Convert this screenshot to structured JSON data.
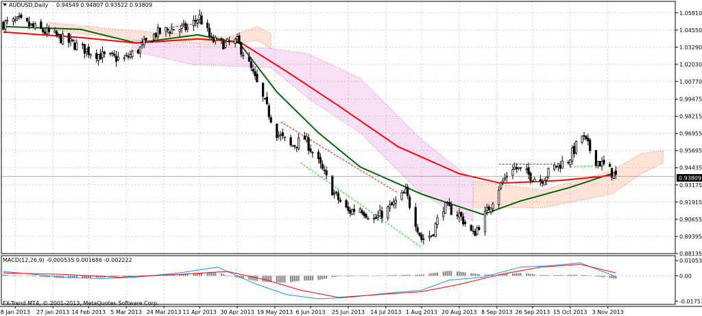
{
  "header": {
    "symbol_label": "AUDUSD,Daily",
    "ohlc_label": "0.94549 0.94807 0.93522 0.93809"
  },
  "price_tag": "0.93809",
  "macd": {
    "label": "MACD(12,26,9) -0.000535 0.001686 -0.002222",
    "watermark": "FX-Trend MT4, © 2001-2013, MetaQuotes Software Corp."
  },
  "colors": {
    "background": "#ffffff",
    "grid": "#c0c0c0",
    "candle": "#000000",
    "ma_fast": "#006400",
    "ma_slow": "#ff0000",
    "cloud_up": "#ff7f50",
    "cloud_down": "#da70d6",
    "macd_line": "#1e90ff",
    "signal_line": "#ff0000",
    "hist": "#808080",
    "arrow_up": "#00dd00",
    "arrow_down": "#ff0000"
  },
  "chart_data": [
    {
      "type": "candlestick",
      "title": "AUDUSD,Daily",
      "last_price": 0.93809,
      "y_ticks": [
        "1.05810",
        "1.04550",
        "1.03290",
        "1.02030",
        "1.00770",
        "0.99475",
        "0.98215",
        "0.96955",
        "0.95695",
        "0.94435",
        "0.93175",
        "0.91915",
        "0.90655",
        "0.89395",
        "0.88135"
      ],
      "ylim": [
        0.8813,
        1.0605
      ],
      "x_labels": [
        "8 Jan 2013",
        "27 Jan 2013",
        "14 Feb 2013",
        "5 Mar 2013",
        "24 Mar 2013",
        "11 Apr 2013",
        "30 Apr 2013",
        "19 May 2013",
        "6 Jun 2013",
        "25 Jun 2013",
        "14 Jul 2013",
        "1 Aug 2013",
        "20 Aug 2013",
        "8 Sep 2013",
        "26 Sep 2013",
        "15 Oct 2013",
        "3 Nov 2013"
      ],
      "close_anchors": [
        {
          "date": "2013-01-02",
          "close": 1.05
        },
        {
          "date": "2013-01-10",
          "close": 1.052
        },
        {
          "date": "2013-01-18",
          "close": 1.047
        },
        {
          "date": "2013-01-27",
          "close": 1.042
        },
        {
          "date": "2013-02-05",
          "close": 1.036
        },
        {
          "date": "2013-02-14",
          "close": 1.03
        },
        {
          "date": "2013-02-22",
          "close": 1.026
        },
        {
          "date": "2013-03-04",
          "close": 1.024
        },
        {
          "date": "2013-03-12",
          "close": 1.032
        },
        {
          "date": "2013-03-20",
          "close": 1.043
        },
        {
          "date": "2013-03-28",
          "close": 1.046
        },
        {
          "date": "2013-04-05",
          "close": 1.047
        },
        {
          "date": "2013-04-11",
          "close": 1.055
        },
        {
          "date": "2013-04-17",
          "close": 1.038
        },
        {
          "date": "2013-04-24",
          "close": 1.035
        },
        {
          "date": "2013-04-30",
          "close": 1.037
        },
        {
          "date": "2013-05-06",
          "close": 1.02
        },
        {
          "date": "2013-05-13",
          "close": 0.995
        },
        {
          "date": "2013-05-20",
          "close": 0.97
        },
        {
          "date": "2013-05-27",
          "close": 0.96
        },
        {
          "date": "2013-06-03",
          "close": 0.966
        },
        {
          "date": "2013-06-10",
          "close": 0.948
        },
        {
          "date": "2013-06-18",
          "close": 0.925
        },
        {
          "date": "2013-06-25",
          "close": 0.912
        },
        {
          "date": "2013-07-01",
          "close": 0.915
        },
        {
          "date": "2013-07-08",
          "close": 0.906
        },
        {
          "date": "2013-07-16",
          "close": 0.915
        },
        {
          "date": "2013-07-24",
          "close": 0.926
        },
        {
          "date": "2013-08-01",
          "close": 0.892
        },
        {
          "date": "2013-08-06",
          "close": 0.895
        },
        {
          "date": "2013-08-12",
          "close": 0.916
        },
        {
          "date": "2013-08-20",
          "close": 0.91
        },
        {
          "date": "2013-08-27",
          "close": 0.895
        },
        {
          "date": "2013-09-03",
          "close": 0.912
        },
        {
          "date": "2013-09-09",
          "close": 0.93
        },
        {
          "date": "2013-09-16",
          "close": 0.945
        },
        {
          "date": "2013-09-23",
          "close": 0.94
        },
        {
          "date": "2013-09-30",
          "close": 0.935
        },
        {
          "date": "2013-10-07",
          "close": 0.945
        },
        {
          "date": "2013-10-14",
          "close": 0.95
        },
        {
          "date": "2013-10-21",
          "close": 0.968
        },
        {
          "date": "2013-10-28",
          "close": 0.95
        },
        {
          "date": "2013-11-01",
          "close": 0.946
        },
        {
          "date": "2013-11-07",
          "close": 0.938
        }
      ],
      "series": [
        {
          "name": "MA fast",
          "points": [
            {
              "date": "2013-01-02",
              "value": 1.048
            },
            {
              "date": "2013-02-10",
              "value": 1.046
            },
            {
              "date": "2013-03-10",
              "value": 1.036
            },
            {
              "date": "2013-04-10",
              "value": 1.042
            },
            {
              "date": "2013-05-01",
              "value": 1.036
            },
            {
              "date": "2013-05-20",
              "value": 1.0
            },
            {
              "date": "2013-06-10",
              "value": 0.97
            },
            {
              "date": "2013-07-01",
              "value": 0.945
            },
            {
              "date": "2013-08-01",
              "value": 0.925
            },
            {
              "date": "2013-09-01",
              "value": 0.91
            },
            {
              "date": "2013-09-20",
              "value": 0.92
            },
            {
              "date": "2013-10-15",
              "value": 0.93
            },
            {
              "date": "2013-11-07",
              "value": 0.941
            }
          ]
        },
        {
          "name": "MA slow",
          "points": [
            {
              "date": "2013-01-02",
              "value": 1.044
            },
            {
              "date": "2013-02-10",
              "value": 1.04
            },
            {
              "date": "2013-03-10",
              "value": 1.036
            },
            {
              "date": "2013-04-10",
              "value": 1.039
            },
            {
              "date": "2013-05-01",
              "value": 1.037
            },
            {
              "date": "2013-05-25",
              "value": 1.015
            },
            {
              "date": "2013-06-20",
              "value": 0.99
            },
            {
              "date": "2013-07-20",
              "value": 0.96
            },
            {
              "date": "2013-08-20",
              "value": 0.94
            },
            {
              "date": "2013-09-10",
              "value": 0.933
            },
            {
              "date": "2013-10-10",
              "value": 0.935
            },
            {
              "date": "2013-11-07",
              "value": 0.939
            }
          ]
        }
      ],
      "cloud_up": [
        {
          "date": "2013-01-25",
          "top": 1.051,
          "bottom": 1.046
        },
        {
          "date": "2013-03-08",
          "top": 1.045,
          "bottom": 1.038
        },
        {
          "date": "2013-04-25",
          "top": 1.04,
          "bottom": 1.034
        },
        {
          "date": "2013-05-10",
          "top": 1.048,
          "bottom": 1.038
        },
        {
          "date": "2013-05-17",
          "top": 1.043,
          "bottom": 1.032
        },
        {
          "date": "2013-08-27",
          "top": 0.935,
          "bottom": 0.915
        },
        {
          "date": "2013-10-01",
          "top": 0.928,
          "bottom": 0.915
        },
        {
          "date": "2013-11-05",
          "top": 0.942,
          "bottom": 0.925
        },
        {
          "date": "2013-11-20",
          "top": 0.955,
          "bottom": 0.94
        },
        {
          "date": "2013-12-01",
          "top": 0.957,
          "bottom": 0.948
        }
      ],
      "cloud_down": [
        {
          "date": "2013-03-08",
          "top": 1.038,
          "bottom": 1.03
        },
        {
          "date": "2013-04-08",
          "top": 1.034,
          "bottom": 1.02
        },
        {
          "date": "2013-05-17",
          "top": 1.032,
          "bottom": 1.018
        },
        {
          "date": "2013-06-05",
          "top": 1.028,
          "bottom": 0.995
        },
        {
          "date": "2013-07-01",
          "top": 1.01,
          "bottom": 0.97
        },
        {
          "date": "2013-08-01",
          "top": 0.965,
          "bottom": 0.925
        },
        {
          "date": "2013-08-27",
          "top": 0.935,
          "bottom": 0.905
        }
      ],
      "trendlines": [
        {
          "color": "#00dd00",
          "from": {
            "date": "2013-06-01",
            "value": 0.948
          },
          "to": {
            "date": "2013-08-01",
            "value": 0.886
          }
        },
        {
          "color": "#ff0000",
          "from": {
            "date": "2013-05-22",
            "value": 0.978
          },
          "to": {
            "date": "2013-07-20",
            "value": 0.926
          }
        },
        {
          "color": "#ff0000",
          "from": {
            "date": "2013-03-25",
            "value": 1.047
          },
          "to": {
            "date": "2013-04-13",
            "value": 1.051
          }
        },
        {
          "color": "#ff0000",
          "from": {
            "date": "2013-09-09",
            "value": 0.947
          },
          "to": {
            "date": "2013-10-06",
            "value": 0.947
          }
        },
        {
          "color": "#00dd00",
          "from": {
            "date": "2013-10-15",
            "value": 0.945
          },
          "to": {
            "date": "2013-11-01",
            "value": 0.946
          }
        }
      ]
    },
    {
      "type": "line",
      "title": "MACD(12,26,9) -0.000535 0.001686 -0.002222",
      "y_ticks": [
        "0.010535",
        "0.00",
        "-0.01757"
      ],
      "ylim": [
        -0.0198,
        0.0125
      ],
      "series": [
        {
          "name": "MACD",
          "points": [
            {
              "date": "2013-01-02",
              "value": 0.003
            },
            {
              "date": "2013-02-01",
              "value": -0.001
            },
            {
              "date": "2013-02-20",
              "value": -0.002
            },
            {
              "date": "2013-03-10",
              "value": -0.001
            },
            {
              "date": "2013-04-01",
              "value": 0.002
            },
            {
              "date": "2013-04-20",
              "value": 0.006
            },
            {
              "date": "2013-05-10",
              "value": -0.006
            },
            {
              "date": "2013-05-25",
              "value": -0.013
            },
            {
              "date": "2013-06-10",
              "value": -0.016
            },
            {
              "date": "2013-06-25",
              "value": -0.015
            },
            {
              "date": "2013-07-15",
              "value": -0.012
            },
            {
              "date": "2013-08-01",
              "value": -0.01
            },
            {
              "date": "2013-08-15",
              "value": -0.003
            },
            {
              "date": "2013-09-01",
              "value": -0.001
            },
            {
              "date": "2013-09-20",
              "value": 0.006
            },
            {
              "date": "2013-10-05",
              "value": 0.007
            },
            {
              "date": "2013-10-20",
              "value": 0.009
            },
            {
              "date": "2013-11-07",
              "value": -0.0005
            }
          ]
        },
        {
          "name": "Signal",
          "points": [
            {
              "date": "2013-01-02",
              "value": 0.002
            },
            {
              "date": "2013-02-01",
              "value": 0.001
            },
            {
              "date": "2013-03-01",
              "value": -0.001
            },
            {
              "date": "2013-04-01",
              "value": 0.001
            },
            {
              "date": "2013-04-25",
              "value": 0.003
            },
            {
              "date": "2013-05-15",
              "value": -0.003
            },
            {
              "date": "2013-06-01",
              "value": -0.01
            },
            {
              "date": "2013-06-20",
              "value": -0.015
            },
            {
              "date": "2013-07-10",
              "value": -0.013
            },
            {
              "date": "2013-08-01",
              "value": -0.011
            },
            {
              "date": "2013-08-20",
              "value": -0.006
            },
            {
              "date": "2013-09-10",
              "value": 0.001
            },
            {
              "date": "2013-09-30",
              "value": 0.006
            },
            {
              "date": "2013-10-20",
              "value": 0.008
            },
            {
              "date": "2013-11-07",
              "value": 0.002
            }
          ]
        }
      ]
    }
  ]
}
